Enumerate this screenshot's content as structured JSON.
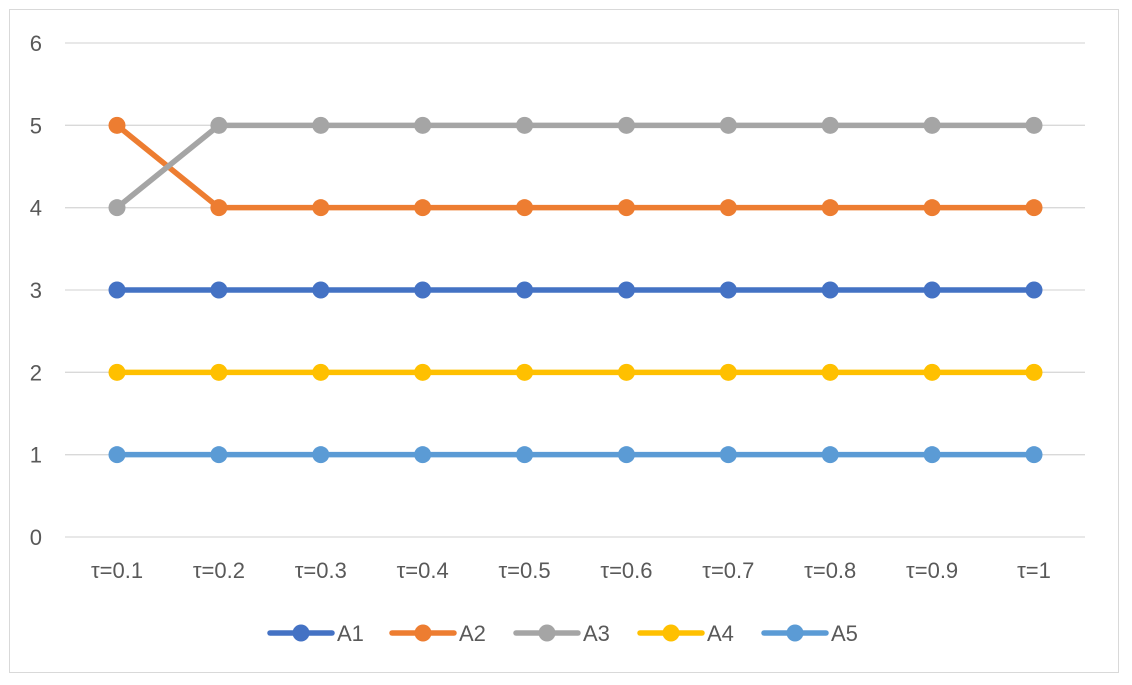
{
  "chart_data": {
    "type": "line",
    "title": "",
    "xlabel": "",
    "ylabel": "",
    "categories": [
      "τ=0.1",
      "τ=0.2",
      "τ=0.3",
      "τ=0.4",
      "τ=0.5",
      "τ=0.6",
      "τ=0.7",
      "τ=0.8",
      "τ=0.9",
      "τ=1"
    ],
    "ylim": [
      0,
      6
    ],
    "yticks": [
      0,
      1,
      2,
      3,
      4,
      5,
      6
    ],
    "grid": true,
    "legend_position": "bottom",
    "series": [
      {
        "name": "A1",
        "color": "#4472C4",
        "values": [
          3,
          3,
          3,
          3,
          3,
          3,
          3,
          3,
          3,
          3
        ]
      },
      {
        "name": "A2",
        "color": "#ED7D31",
        "values": [
          5,
          4,
          4,
          4,
          4,
          4,
          4,
          4,
          4,
          4
        ]
      },
      {
        "name": "A3",
        "color": "#A5A5A5",
        "values": [
          4,
          5,
          5,
          5,
          5,
          5,
          5,
          5,
          5,
          5
        ]
      },
      {
        "name": "A4",
        "color": "#FFC000",
        "values": [
          2,
          2,
          2,
          2,
          2,
          2,
          2,
          2,
          2,
          2
        ]
      },
      {
        "name": "A5",
        "color": "#5B9BD5",
        "values": [
          1,
          1,
          1,
          1,
          1,
          1,
          1,
          1,
          1,
          1
        ]
      }
    ]
  }
}
